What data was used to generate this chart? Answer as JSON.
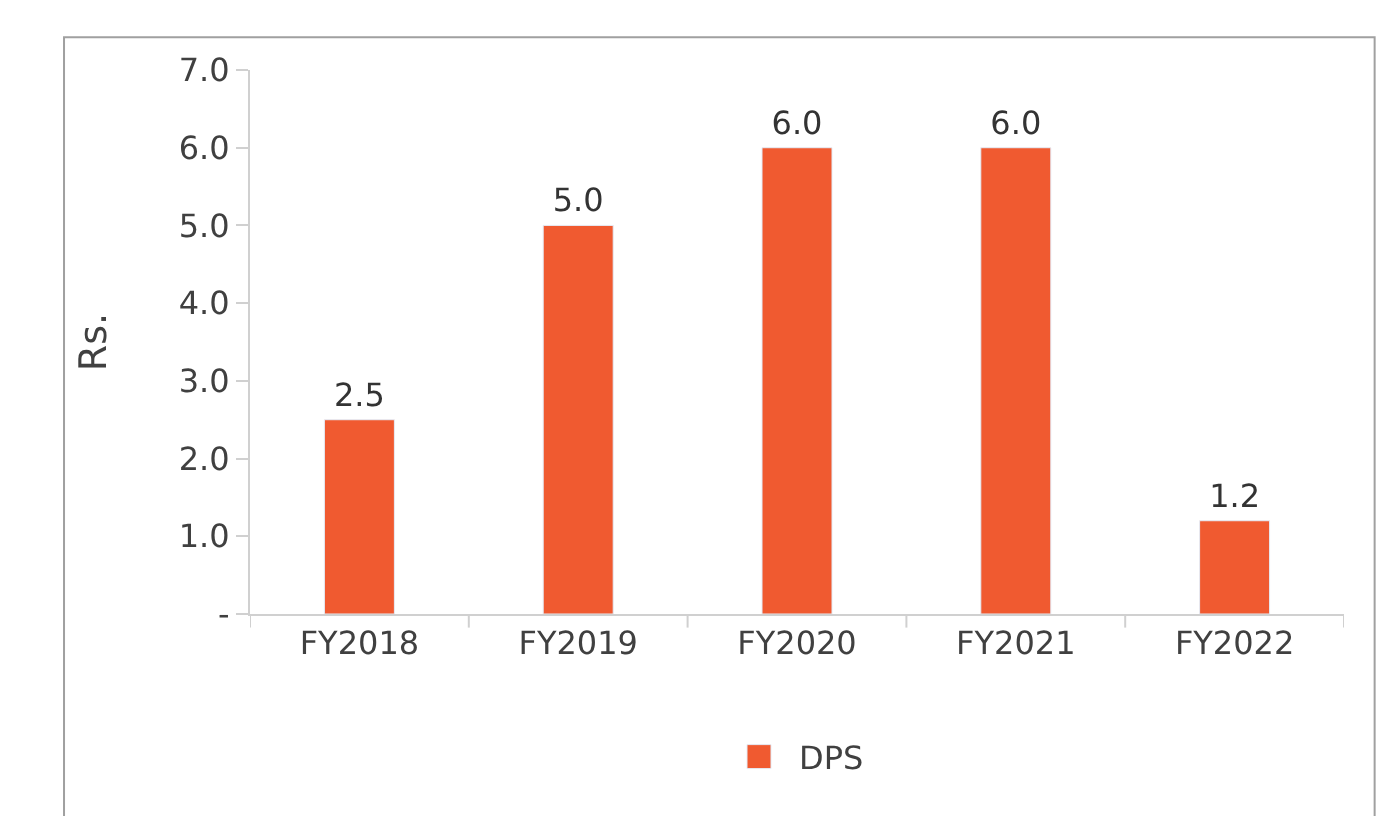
{
  "chart_data": {
    "type": "bar",
    "ylabel": "Rs.",
    "categories": [
      "FY2018",
      "FY2019",
      "FY2020",
      "FY2021",
      "FY2022"
    ],
    "series": [
      {
        "name": "DPS",
        "color": "#f05a30",
        "values": [
          2.5,
          5.0,
          6.0,
          6.0,
          1.2
        ],
        "value_labels": [
          "2.5",
          "5.0",
          "6.0",
          "6.0",
          "1.2"
        ]
      }
    ],
    "ylim": [
      0,
      7
    ],
    "yticks": [
      {
        "value": 0,
        "label": "-"
      },
      {
        "value": 1,
        "label": "1.0"
      },
      {
        "value": 2,
        "label": "2.0"
      },
      {
        "value": 3,
        "label": "3.0"
      },
      {
        "value": 4,
        "label": "4.0"
      },
      {
        "value": 5,
        "label": "5.0"
      },
      {
        "value": 6,
        "label": "6.0"
      },
      {
        "value": 7,
        "label": "7.0"
      }
    ],
    "legend": "bottom"
  }
}
